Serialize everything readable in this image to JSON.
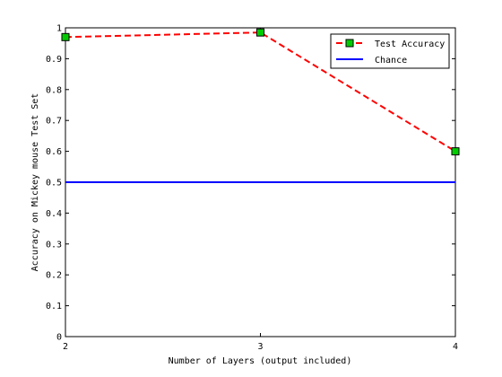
{
  "chart_data": {
    "type": "line",
    "title": "",
    "xlabel": "Number of Layers (output included)",
    "ylabel": "Accuracy on Mickey mouse Test Set",
    "xlim": [
      2,
      4
    ],
    "ylim": [
      0,
      1
    ],
    "x_ticks": [
      "2",
      "3",
      "4"
    ],
    "y_ticks": [
      "0",
      "0.1",
      "0.2",
      "0.3",
      "0.4",
      "0.5",
      "0.6",
      "0.7",
      "0.8",
      "0.9",
      "1"
    ],
    "grid": false,
    "legend_position": "top-right",
    "series": [
      {
        "name": "Test Accuracy",
        "x": [
          2,
          3,
          4
        ],
        "y": [
          0.97,
          0.985,
          0.6
        ],
        "color": "#ff0000",
        "line_style": "dashed",
        "marker": "square",
        "marker_fill": "#00cc00"
      },
      {
        "name": "Chance",
        "x": [
          2,
          4
        ],
        "y": [
          0.5,
          0.5
        ],
        "color": "#0000ff",
        "line_style": "solid",
        "marker": "none"
      }
    ]
  }
}
